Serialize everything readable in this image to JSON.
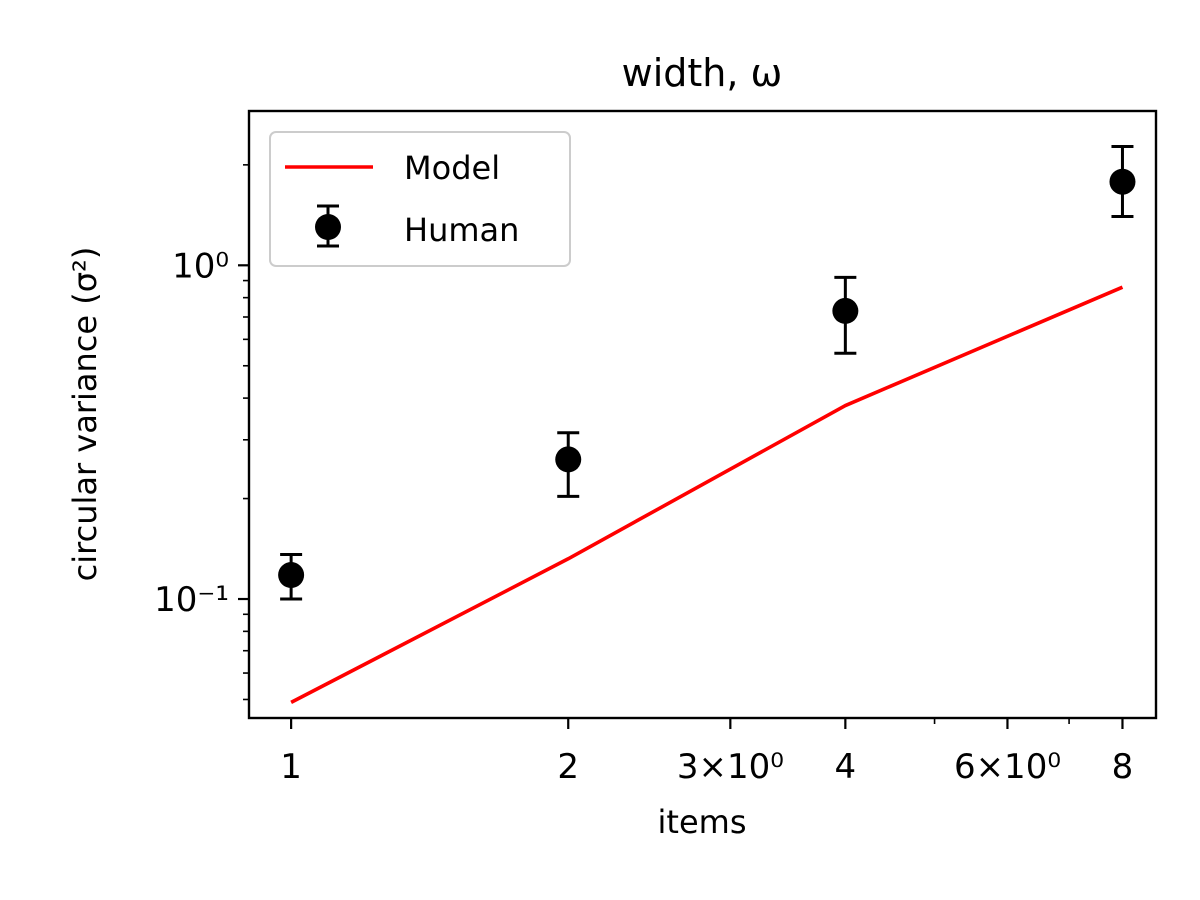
{
  "chart_data": {
    "type": "line",
    "title": "width, ω",
    "xlabel": "items",
    "ylabel": "circular variance (σ²)",
    "xscale": "log",
    "yscale": "log",
    "xlim": [
      0.9,
      8.7
    ],
    "ylim": [
      0.044,
      2.9
    ],
    "grid": false,
    "legend_position": "upper-left",
    "x_ticks": [
      {
        "value": 1,
        "label": "1",
        "major": true
      },
      {
        "value": 2,
        "label": "2",
        "major": true
      },
      {
        "value": 3,
        "label": "3×10⁰",
        "major": true
      },
      {
        "value": 4,
        "label": "4",
        "major": true
      },
      {
        "value": 5,
        "label": "",
        "major": false
      },
      {
        "value": 6,
        "label": "6×10⁰",
        "major": true
      },
      {
        "value": 7,
        "label": "",
        "major": false
      },
      {
        "value": 8,
        "label": "8",
        "major": true
      }
    ],
    "y_major_ticks": [
      {
        "value": 0.1,
        "label": "10⁻¹"
      },
      {
        "value": 1,
        "label": "10⁰"
      }
    ],
    "y_minor_ticks": [
      0.05,
      0.06,
      0.07,
      0.08,
      0.09,
      0.2,
      0.3,
      0.4,
      0.5,
      0.6,
      0.7,
      0.8,
      0.9,
      2
    ],
    "series": [
      {
        "name": "Model",
        "kind": "line",
        "color": "#ff0000",
        "x": [
          1,
          2,
          4,
          8
        ],
        "y": [
          0.049,
          0.132,
          0.38,
          0.86
        ]
      },
      {
        "name": "Human",
        "kind": "errorbar",
        "color": "#000000",
        "x": [
          1,
          2,
          4,
          8
        ],
        "y": [
          0.118,
          0.262,
          0.73,
          1.78
        ],
        "yerr_low": [
          0.1,
          0.203,
          0.545,
          1.4
        ],
        "yerr_high": [
          0.136,
          0.315,
          0.92,
          2.27
        ]
      }
    ]
  }
}
